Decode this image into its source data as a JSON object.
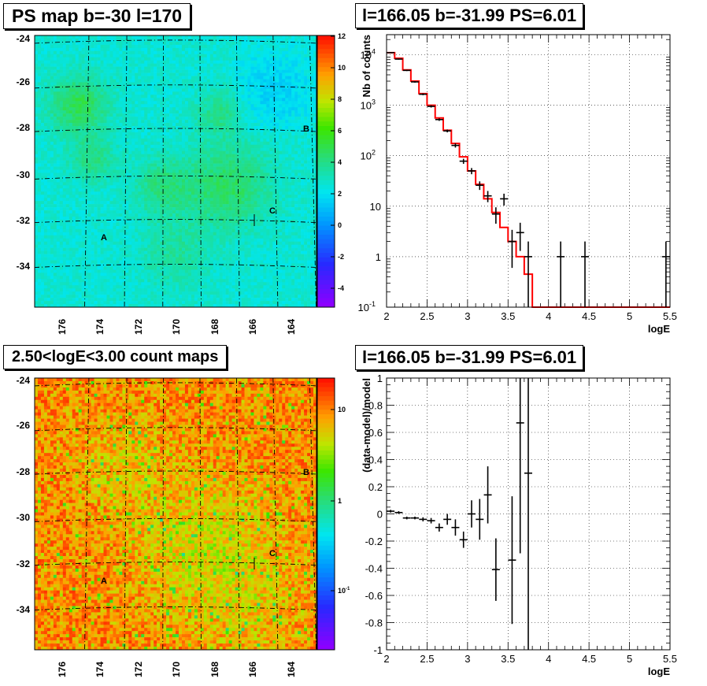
{
  "panels": {
    "top_left_title": "PS map b=-30 l=170",
    "top_right_title": "l=166.05 b=-31.99 PS=6.01",
    "bottom_left_title": "2.50<logE<3.00 count maps",
    "bottom_right_title": "l=166.05 b=-31.99 PS=6.01"
  },
  "map_labels": {
    "y_ticks": [
      "-24",
      "-26",
      "-28",
      "-30",
      "-32",
      "-34"
    ],
    "x_ticks": [
      "176",
      "174",
      "172",
      "170",
      "168",
      "166",
      "164"
    ],
    "sources": [
      "A",
      "B",
      "C"
    ]
  },
  "colors": {
    "data": "#000000",
    "model": "#ff0000"
  },
  "chart_data": [
    {
      "type": "heatmap",
      "title": "PS map b=-30 l=170",
      "xlabel": "",
      "ylabel": "",
      "x_ticks": [
        176,
        174,
        172,
        170,
        168,
        166,
        164
      ],
      "y_ticks": [
        -24,
        -26,
        -28,
        -30,
        -32,
        -34
      ],
      "xlim": [
        178,
        162.5
      ],
      "ylim": [
        -36,
        -23.8
      ],
      "colorbar": {
        "ticks": [
          "12",
          "10",
          "8",
          "6",
          "4",
          "2",
          "0",
          "-2",
          "-4"
        ],
        "range": [
          -5,
          12
        ]
      },
      "annotations": [
        {
          "text": "A",
          "l": 174,
          "b": -33
        },
        {
          "text": "B",
          "l": 163.2,
          "b": -28
        },
        {
          "text": "C",
          "l": 165.3,
          "b": -31.5
        }
      ]
    },
    {
      "type": "line",
      "title": "l=166.05 b=-31.99 PS=6.01",
      "xlabel": "logE",
      "ylabel": "Nb of counts",
      "xlim": [
        2,
        5.5
      ],
      "ylim": [
        0.1,
        25000
      ],
      "y_scale": "log",
      "x_ticks": [
        "2",
        "2.5",
        "3",
        "3.5",
        "4",
        "4.5",
        "5",
        "5.5"
      ],
      "y_ticks": [
        {
          "value": 10000,
          "label": "10",
          "exp": "4"
        },
        {
          "value": 1000,
          "label": "10",
          "exp": "3"
        },
        {
          "value": 100,
          "label": "10",
          "exp": "2"
        },
        {
          "value": 10,
          "label": "10",
          "exp": ""
        },
        {
          "value": 1,
          "label": "1",
          "exp": ""
        },
        {
          "value": 0.1,
          "label": "10",
          "exp": "-1"
        }
      ],
      "grid": true,
      "model_step": {
        "edges": [
          2,
          2.1,
          2.2,
          2.3,
          2.4,
          2.5,
          2.6,
          2.7,
          2.8,
          2.9,
          3.0,
          3.1,
          3.2,
          3.3,
          3.4,
          3.5,
          3.6,
          3.7,
          3.8,
          5.5
        ],
        "values": [
          11000,
          8500,
          5000,
          3000,
          1700,
          1000,
          560,
          320,
          175,
          95,
          50,
          27,
          14,
          7.5,
          3.8,
          2,
          1,
          0.45,
          0.1
        ]
      },
      "data_points": [
        {
          "x": 2.05,
          "y": 11000,
          "lo": 10800,
          "hi": 11200
        },
        {
          "x": 2.15,
          "y": 8200,
          "lo": 8000,
          "hi": 8400
        },
        {
          "x": 2.25,
          "y": 4900,
          "lo": 4750,
          "hi": 5050
        },
        {
          "x": 2.35,
          "y": 2900,
          "lo": 2800,
          "hi": 3000
        },
        {
          "x": 2.45,
          "y": 1650,
          "lo": 1580,
          "hi": 1720
        },
        {
          "x": 2.55,
          "y": 950,
          "lo": 900,
          "hi": 1000
        },
        {
          "x": 2.65,
          "y": 520,
          "lo": 490,
          "hi": 550
        },
        {
          "x": 2.75,
          "y": 310,
          "lo": 290,
          "hi": 330
        },
        {
          "x": 2.85,
          "y": 160,
          "lo": 145,
          "hi": 175
        },
        {
          "x": 2.95,
          "y": 78,
          "lo": 69,
          "hi": 87
        },
        {
          "x": 3.05,
          "y": 50,
          "lo": 43,
          "hi": 57
        },
        {
          "x": 3.15,
          "y": 26,
          "lo": 21,
          "hi": 31
        },
        {
          "x": 3.25,
          "y": 16,
          "lo": 12,
          "hi": 20
        },
        {
          "x": 3.35,
          "y": 7,
          "lo": 4.5,
          "hi": 9.5
        },
        {
          "x": 3.45,
          "y": 14,
          "lo": 10.3,
          "hi": 17.7
        },
        {
          "x": 3.55,
          "y": 2,
          "lo": 0.6,
          "hi": 3.4
        },
        {
          "x": 3.65,
          "y": 3,
          "lo": 1.3,
          "hi": 4.7
        },
        {
          "x": 3.75,
          "y": 1,
          "lo": 0.1,
          "hi": 2
        },
        {
          "x": 4.15,
          "y": 1,
          "lo": 0.1,
          "hi": 2
        },
        {
          "x": 4.45,
          "y": 1,
          "lo": 0.1,
          "hi": 2
        },
        {
          "x": 5.45,
          "y": 1,
          "lo": 0.1,
          "hi": 2
        }
      ]
    },
    {
      "type": "heatmap",
      "title": "2.50<logE<3.00 count maps",
      "xlabel": "",
      "ylabel": "",
      "x_ticks": [
        176,
        174,
        172,
        170,
        168,
        166,
        164
      ],
      "y_ticks": [
        -24,
        -26,
        -28,
        -30,
        -32,
        -34
      ],
      "xlim": [
        178,
        162.5
      ],
      "ylim": [
        -36,
        -23.8
      ],
      "colorbar": {
        "ticks": [
          "10",
          "1",
          "10-1"
        ],
        "scale": "log"
      },
      "annotations": [
        {
          "text": "A",
          "l": 174,
          "b": -33
        },
        {
          "text": "B",
          "l": 163.2,
          "b": -28
        },
        {
          "text": "C",
          "l": 165.3,
          "b": -31.5
        }
      ]
    },
    {
      "type": "scatter",
      "title": "l=166.05 b=-31.99 PS=6.01",
      "xlabel": "logE",
      "ylabel": "(data-model)/model",
      "xlim": [
        2,
        5.5
      ],
      "ylim": [
        -1,
        1
      ],
      "x_ticks": [
        "2",
        "2.5",
        "3",
        "3.5",
        "4",
        "4.5",
        "5",
        "5.5"
      ],
      "y_ticks": [
        "1",
        "0.8",
        "0.6",
        "0.4",
        "0.2",
        "0",
        "-0.2",
        "-0.4",
        "-0.6",
        "-0.8",
        "-1"
      ],
      "grid": true,
      "data_points": [
        {
          "x": 2.05,
          "y": 0.02,
          "err": 0.01
        },
        {
          "x": 2.15,
          "y": 0.01,
          "err": 0.01
        },
        {
          "x": 2.25,
          "y": -0.03,
          "err": 0.01
        },
        {
          "x": 2.35,
          "y": -0.03,
          "err": 0.01
        },
        {
          "x": 2.45,
          "y": -0.04,
          "err": 0.015
        },
        {
          "x": 2.55,
          "y": -0.05,
          "err": 0.02
        },
        {
          "x": 2.65,
          "y": -0.1,
          "err": 0.03
        },
        {
          "x": 2.75,
          "y": -0.04,
          "err": 0.04
        },
        {
          "x": 2.85,
          "y": -0.1,
          "err": 0.06
        },
        {
          "x": 2.95,
          "y": -0.19,
          "err": 0.06
        },
        {
          "x": 3.05,
          "y": 0.0,
          "err": 0.1
        },
        {
          "x": 3.15,
          "y": -0.04,
          "err": 0.15
        },
        {
          "x": 3.25,
          "y": 0.14,
          "err": 0.21
        },
        {
          "x": 3.35,
          "y": -0.41,
          "err": 0.23
        },
        {
          "x": 3.55,
          "y": -0.34,
          "err": 0.47
        },
        {
          "x": 3.65,
          "y": 0.67,
          "err": 0.96
        },
        {
          "x": 3.75,
          "y": 0.3,
          "err": 1.3
        }
      ]
    }
  ]
}
